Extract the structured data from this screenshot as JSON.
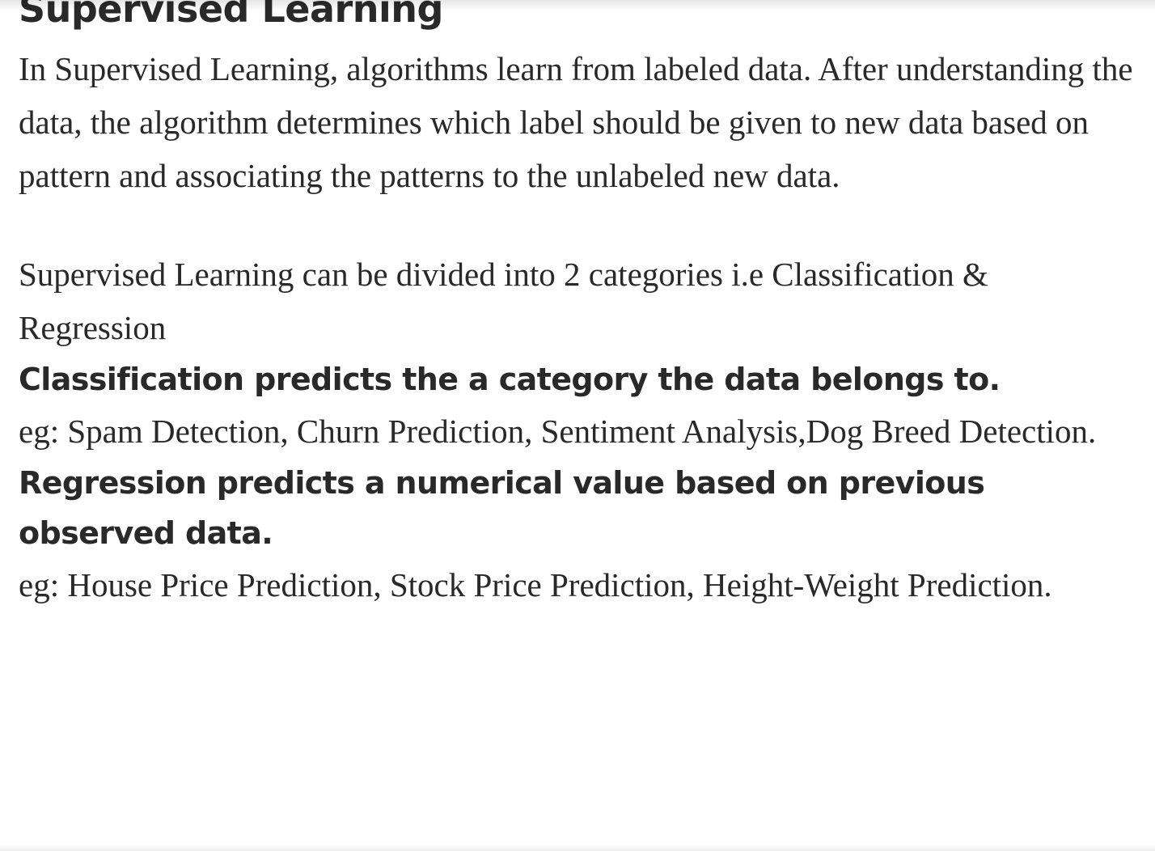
{
  "section_title": "Supervised Learning",
  "paragraphs": [
    "In Supervised Learning, algorithms learn from labeled data. After understanding the data, the algorithm determines which label should be given to new data based on pattern and associating the patterns to the unlabeled new data.",
    "Supervised Learning can be divided into 2 categories i.e Classification & Regression"
  ],
  "classification": {
    "heading": "Classification predicts the a category the data belongs to.",
    "example": "eg: Spam Detection, Churn Prediction, Sentiment Analysis,Dog Breed Detection."
  },
  "regression": {
    "heading": "Regression predicts a numerical value based on previous observed data.",
    "example": "eg: House Price Prediction, Stock Price Prediction, Height-Weight Prediction."
  }
}
